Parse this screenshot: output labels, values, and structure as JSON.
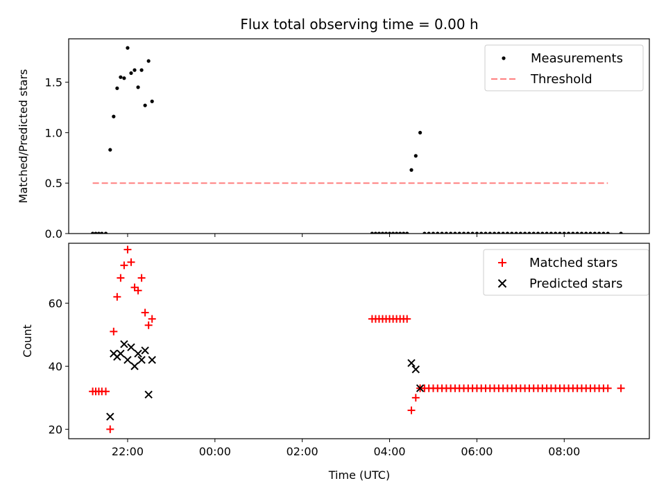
{
  "chart_data": {
    "title": "Flux total observing time = 0.00 h",
    "xlabel": "Time (UTC)",
    "x_unit": "hours relative to 00:00 UTC",
    "xlim": [
      -3.35,
      9.95
    ],
    "x_ticks": [
      {
        "value": -2,
        "label": "22:00"
      },
      {
        "value": 0,
        "label": "00:00"
      },
      {
        "value": 2,
        "label": "02:00"
      },
      {
        "value": 4,
        "label": "04:00"
      },
      {
        "value": 6,
        "label": "06:00"
      },
      {
        "value": 8,
        "label": "08:00"
      }
    ],
    "subplots": [
      {
        "type": "scatter",
        "ylabel": "Matched/Predicted stars",
        "ylim": [
          0,
          1.93
        ],
        "y_ticks": [
          0.0,
          0.5,
          1.0,
          1.5
        ],
        "y_tick_labels": [
          "0.0",
          "0.5",
          "1.0",
          "1.5"
        ],
        "legend": "top-right",
        "series": [
          {
            "name": "Measurements",
            "marker": "dot",
            "color": "#000000",
            "points": [
              [
                -2.8,
                0
              ],
              [
                -2.73,
                0
              ],
              [
                -2.66,
                0
              ],
              [
                -2.59,
                0
              ],
              [
                -2.5,
                0
              ],
              [
                -2.4,
                0.83
              ],
              [
                -2.32,
                1.16
              ],
              [
                -2.24,
                1.44
              ],
              [
                -2.16,
                1.55
              ],
              [
                -2.08,
                1.54
              ],
              [
                -2.0,
                1.84
              ],
              [
                -1.92,
                1.59
              ],
              [
                -1.84,
                1.62
              ],
              [
                -1.76,
                1.45
              ],
              [
                -1.68,
                1.62
              ],
              [
                -1.6,
                1.27
              ],
              [
                -1.52,
                1.71
              ],
              [
                -1.44,
                1.31
              ],
              [
                3.6,
                0
              ],
              [
                3.68,
                0
              ],
              [
                3.76,
                0
              ],
              [
                3.84,
                0
              ],
              [
                3.92,
                0
              ],
              [
                4.0,
                0
              ],
              [
                4.08,
                0
              ],
              [
                4.16,
                0
              ],
              [
                4.24,
                0
              ],
              [
                4.32,
                0
              ],
              [
                4.4,
                0
              ],
              [
                4.5,
                0.63
              ],
              [
                4.6,
                0.77
              ],
              [
                4.7,
                1.0
              ],
              [
                4.8,
                0
              ],
              [
                4.9,
                0
              ],
              [
                5.0,
                0
              ],
              [
                5.1,
                0
              ],
              [
                5.2,
                0
              ],
              [
                5.3,
                0
              ],
              [
                5.4,
                0
              ],
              [
                5.5,
                0
              ],
              [
                5.6,
                0
              ],
              [
                5.7,
                0
              ],
              [
                5.8,
                0
              ],
              [
                5.9,
                0
              ],
              [
                6.0,
                0
              ],
              [
                6.1,
                0
              ],
              [
                6.2,
                0
              ],
              [
                6.3,
                0
              ],
              [
                6.4,
                0
              ],
              [
                6.5,
                0
              ],
              [
                6.6,
                0
              ],
              [
                6.7,
                0
              ],
              [
                6.8,
                0
              ],
              [
                6.9,
                0
              ],
              [
                7.0,
                0
              ],
              [
                7.1,
                0
              ],
              [
                7.2,
                0
              ],
              [
                7.3,
                0
              ],
              [
                7.4,
                0
              ],
              [
                7.5,
                0
              ],
              [
                7.6,
                0
              ],
              [
                7.7,
                0
              ],
              [
                7.8,
                0
              ],
              [
                7.9,
                0
              ],
              [
                8.0,
                0
              ],
              [
                8.1,
                0
              ],
              [
                8.2,
                0
              ],
              [
                8.3,
                0
              ],
              [
                8.4,
                0
              ],
              [
                8.5,
                0
              ],
              [
                8.6,
                0
              ],
              [
                8.7,
                0
              ],
              [
                8.8,
                0
              ],
              [
                8.9,
                0
              ],
              [
                9.0,
                0
              ],
              [
                9.3,
                0
              ]
            ]
          },
          {
            "name": "Threshold",
            "line": "dashed",
            "color": "#ff7f7f",
            "points": [
              [
                -2.8,
                0.5
              ],
              [
                9.0,
                0.5
              ]
            ]
          }
        ]
      },
      {
        "type": "scatter",
        "ylabel": "Count",
        "ylim": [
          17,
          79
        ],
        "y_ticks": [
          20,
          40,
          60
        ],
        "y_tick_labels": [
          "20",
          "40",
          "60"
        ],
        "legend": "top-right",
        "series": [
          {
            "name": "Matched stars",
            "marker": "plus",
            "color": "#ff0000",
            "points": [
              [
                -2.8,
                32
              ],
              [
                -2.73,
                32
              ],
              [
                -2.66,
                32
              ],
              [
                -2.59,
                32
              ],
              [
                -2.5,
                32
              ],
              [
                -2.4,
                20
              ],
              [
                -2.32,
                51
              ],
              [
                -2.24,
                62
              ],
              [
                -2.16,
                68
              ],
              [
                -2.08,
                72
              ],
              [
                -2.0,
                77
              ],
              [
                -1.92,
                73
              ],
              [
                -1.84,
                65
              ],
              [
                -1.76,
                64
              ],
              [
                -1.68,
                68
              ],
              [
                -1.6,
                57
              ],
              [
                -1.52,
                53
              ],
              [
                -1.44,
                55
              ],
              [
                3.6,
                55
              ],
              [
                3.68,
                55
              ],
              [
                3.76,
                55
              ],
              [
                3.84,
                55
              ],
              [
                3.92,
                55
              ],
              [
                4.0,
                55
              ],
              [
                4.08,
                55
              ],
              [
                4.16,
                55
              ],
              [
                4.24,
                55
              ],
              [
                4.32,
                55
              ],
              [
                4.4,
                55
              ],
              [
                4.5,
                26
              ],
              [
                4.6,
                30
              ],
              [
                4.7,
                33
              ],
              [
                4.8,
                33
              ],
              [
                4.9,
                33
              ],
              [
                5.0,
                33
              ],
              [
                5.1,
                33
              ],
              [
                5.2,
                33
              ],
              [
                5.3,
                33
              ],
              [
                5.4,
                33
              ],
              [
                5.5,
                33
              ],
              [
                5.6,
                33
              ],
              [
                5.7,
                33
              ],
              [
                5.8,
                33
              ],
              [
                5.9,
                33
              ],
              [
                6.0,
                33
              ],
              [
                6.1,
                33
              ],
              [
                6.2,
                33
              ],
              [
                6.3,
                33
              ],
              [
                6.4,
                33
              ],
              [
                6.5,
                33
              ],
              [
                6.6,
                33
              ],
              [
                6.7,
                33
              ],
              [
                6.8,
                33
              ],
              [
                6.9,
                33
              ],
              [
                7.0,
                33
              ],
              [
                7.1,
                33
              ],
              [
                7.2,
                33
              ],
              [
                7.3,
                33
              ],
              [
                7.4,
                33
              ],
              [
                7.5,
                33
              ],
              [
                7.6,
                33
              ],
              [
                7.7,
                33
              ],
              [
                7.8,
                33
              ],
              [
                7.9,
                33
              ],
              [
                8.0,
                33
              ],
              [
                8.1,
                33
              ],
              [
                8.2,
                33
              ],
              [
                8.3,
                33
              ],
              [
                8.4,
                33
              ],
              [
                8.5,
                33
              ],
              [
                8.6,
                33
              ],
              [
                8.7,
                33
              ],
              [
                8.8,
                33
              ],
              [
                8.9,
                33
              ],
              [
                9.0,
                33
              ],
              [
                9.3,
                33
              ]
            ]
          },
          {
            "name": "Predicted stars",
            "marker": "x",
            "color": "#000000",
            "points": [
              [
                -2.4,
                24
              ],
              [
                -2.32,
                44
              ],
              [
                -2.24,
                43
              ],
              [
                -2.16,
                44
              ],
              [
                -2.08,
                47
              ],
              [
                -2.0,
                42
              ],
              [
                -1.92,
                46
              ],
              [
                -1.84,
                40
              ],
              [
                -1.76,
                44
              ],
              [
                -1.68,
                42
              ],
              [
                -1.6,
                45
              ],
              [
                -1.52,
                31
              ],
              [
                -1.44,
                42
              ],
              [
                4.5,
                41
              ],
              [
                4.6,
                39
              ],
              [
                4.7,
                33
              ]
            ]
          }
        ]
      }
    ]
  }
}
